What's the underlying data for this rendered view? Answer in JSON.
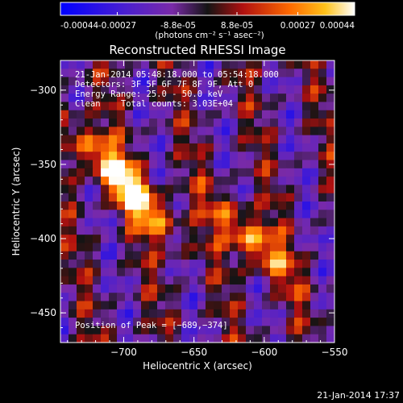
{
  "colorbar": {
    "tick_labels": [
      "-0.00044",
      "-0.00027",
      "-8.8e-05",
      "8.8e-05",
      "0.00027",
      "0.00044"
    ],
    "tick_values": [
      -0.00044,
      -0.00027,
      -8.8e-05,
      8.8e-05,
      0.00027,
      0.00044
    ],
    "range": [
      -0.00044,
      0.00044
    ],
    "units": "(photons cm⁻² s⁻¹ asec⁻²)"
  },
  "chart_data": {
    "type": "heatmap",
    "title": "Reconstructed RHESSI Image",
    "xlabel": "Heliocentric X (arcsec)",
    "ylabel": "Heliocentric Y (arcsec)",
    "xlim": [
      -745,
      -550
    ],
    "ylim": [
      -470,
      -280
    ],
    "x_ticks": [
      -700,
      -650,
      -600,
      -550
    ],
    "x_tick_labels": [
      "−700",
      "−650",
      "−600",
      "−550"
    ],
    "y_ticks": [
      -300,
      -350,
      -400,
      -450
    ],
    "y_tick_labels": [
      "−300",
      "−350",
      "−400",
      "−450"
    ],
    "sources": [
      {
        "x": -689,
        "y": -374,
        "peak": 0.00044
      },
      {
        "x": -609,
        "y": -401,
        "peak": 0.00042
      },
      {
        "x": -720,
        "y": -342,
        "peak": 0.0003
      }
    ],
    "peak_position": [
      -689,
      -374
    ],
    "colormap": "blue-purple-red-yellow-white"
  },
  "annotations": {
    "time_range": "21-Jan-2014 05:48:18.000 to 05:54:18.000",
    "detectors": "Detectors: 3F 5F 6F 7F 8F 9F, Att 0",
    "energy": "Energy Range: 25.0 - 50.0 keV",
    "clean": "Clean    Total counts: 3.03E+04",
    "peak_label": "Position of Peak = [−689,−374]"
  },
  "footer": {
    "timestamp": "21-Jan-2014 17:37"
  }
}
